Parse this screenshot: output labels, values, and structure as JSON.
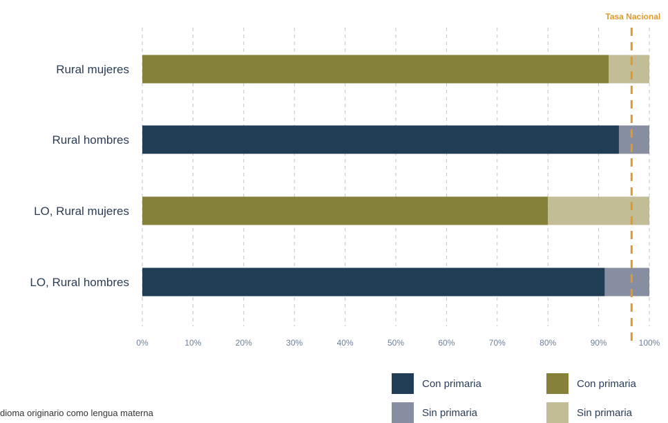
{
  "chart_data": {
    "type": "bar",
    "orientation": "horizontal",
    "stacked": true,
    "categories": [
      "Rural mujeres",
      "Rural hombres",
      "LO, Rural mujeres",
      "LO, Rural hombres"
    ],
    "series": [
      {
        "name": "Con primaria",
        "values": [
          92,
          94,
          80,
          91.2
        ]
      },
      {
        "name": "Sin primaria",
        "values": [
          8,
          6,
          20,
          8.8
        ]
      }
    ],
    "bar_colors": [
      {
        "con": "#86813a",
        "sin": "#c3bd97"
      },
      {
        "con": "#203d55",
        "sin": "#888ea1"
      },
      {
        "con": "#86813a",
        "sin": "#c3bd97"
      },
      {
        "con": "#203d55",
        "sin": "#888ea1"
      }
    ],
    "xlim": [
      0,
      100
    ],
    "x_ticks": [
      0,
      10,
      20,
      30,
      40,
      50,
      60,
      70,
      80,
      90,
      100
    ],
    "x_tick_labels": [
      "0%",
      "10%",
      "20%",
      "30%",
      "40%",
      "50%",
      "60%",
      "70%",
      "80%",
      "90%",
      "100%"
    ],
    "grid": "vertical-dashed",
    "reference_line": {
      "label": "Tasa Nacional",
      "value": 96.5,
      "color": "#e09a2a"
    },
    "legend": [
      {
        "label": "Con primaria",
        "color": "#203d55"
      },
      {
        "label": "Con primaria",
        "color": "#86813a"
      },
      {
        "label": "Sin primaria",
        "color": "#888ea1"
      },
      {
        "label": "Sin primaria",
        "color": "#c3bd97"
      }
    ],
    "legend_placement": "bottom-right"
  },
  "footnote": "dioma originario como lengua materna"
}
